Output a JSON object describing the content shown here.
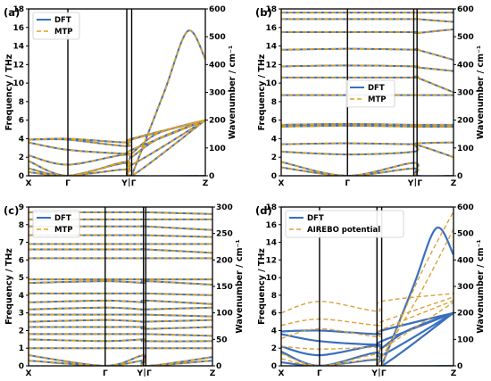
{
  "chart_data": [
    {
      "panel": "(a)",
      "type": "line",
      "ylabel": "Frequency / THz",
      "ylabel_right": "Wavenumber / cm⁻¹",
      "ylim": [
        0,
        18
      ],
      "ylim_right": [
        0,
        600
      ],
      "yticks": [
        "0",
        "2",
        "4",
        "6",
        "8",
        "10",
        "12",
        "14",
        "16",
        "18"
      ],
      "yticks_right": [
        "0",
        "100",
        "200",
        "300",
        "400",
        "500",
        "600"
      ],
      "x_ticks": [
        "X",
        "Γ",
        "Y",
        "Γ",
        "Z"
      ],
      "x_positions": [
        0,
        0.667,
        1.667,
        1.75,
        3.0
      ],
      "legend": [
        "DFT",
        "MTP"
      ],
      "legend_position": "upper left",
      "branches": [
        {
          "x": [
            0,
            0.667,
            1.667,
            1.75,
            3.0
          ],
          "y": [
            0.4,
            0.0,
            0.7,
            0.0,
            0.0
          ]
        },
        {
          "x": [
            0,
            0.667,
            1.667,
            1.75,
            3.0
          ],
          "y": [
            0.8,
            0.0,
            1.4,
            0.0,
            0.0
          ]
        },
        {
          "x": [
            0,
            0.667,
            1.667,
            1.75,
            3.0
          ],
          "y": [
            1.6,
            0.0,
            1.5,
            0.0,
            6.0
          ]
        },
        {
          "x": [
            0,
            0.667,
            1.667,
            1.75,
            3.0
          ],
          "y": [
            2.2,
            1.2,
            2.3,
            1.2,
            6.0
          ]
        },
        {
          "x": [
            0,
            0.667,
            1.667,
            1.75,
            3.0
          ],
          "y": [
            3.6,
            2.8,
            2.4,
            2.8,
            6.0
          ]
        },
        {
          "x": [
            0,
            0.667,
            1.667,
            1.75,
            3.0
          ],
          "y": [
            3.9,
            3.9,
            3.2,
            3.9,
            6.0
          ]
        },
        {
          "x": [
            0,
            0.667,
            1.667,
            1.75,
            3.0
          ],
          "y": [
            3.9,
            4.0,
            3.6,
            4.0,
            6.0
          ]
        },
        {
          "x": [
            1.75,
            2.3,
            2.7,
            3.0
          ],
          "y": [
            0.0,
            9.0,
            15.6,
            12.6
          ]
        },
        {
          "x": [
            1.75,
            2.2,
            3.0
          ],
          "y": [
            2.0,
            4.0,
            6.0
          ]
        },
        {
          "x": [
            1.75,
            2.2,
            3.0
          ],
          "y": [
            2.4,
            4.6,
            6.0
          ]
        }
      ]
    },
    {
      "panel": "(b)",
      "type": "line",
      "ylabel": "Frequency / THz",
      "ylabel_right": "Wavenumber / cm⁻¹",
      "ylim": [
        0,
        18
      ],
      "ylim_right": [
        0,
        600
      ],
      "yticks": [
        "0",
        "2",
        "4",
        "6",
        "8",
        "10",
        "12",
        "14",
        "16",
        "18"
      ],
      "yticks_right": [
        "0",
        "100",
        "200",
        "300",
        "400",
        "500",
        "600"
      ],
      "x_ticks": [
        "X",
        "Γ",
        "Y",
        "Γ",
        "Z"
      ],
      "x_positions": [
        0,
        1.0,
        2.0,
        2.05,
        2.6
      ],
      "legend": [
        "DFT",
        "MTP"
      ],
      "legend_position": "center",
      "branches": [
        {
          "x": [
            0,
            1.0,
            2.0,
            2.05,
            2.6
          ],
          "y": [
            17.6,
            17.6,
            17.6,
            17.6,
            17.6
          ]
        },
        {
          "x": [
            0,
            1.0,
            2.0,
            2.05,
            2.6
          ],
          "y": [
            16.9,
            16.9,
            16.9,
            16.9,
            16.6
          ]
        },
        {
          "x": [
            0,
            1.0,
            2.0,
            2.05,
            2.6
          ],
          "y": [
            15.5,
            15.5,
            15.5,
            15.4,
            15.8
          ]
        },
        {
          "x": [
            0,
            1.0,
            2.0,
            2.05,
            2.6
          ],
          "y": [
            13.6,
            13.7,
            13.6,
            13.6,
            12.5
          ]
        },
        {
          "x": [
            0,
            1.0,
            2.0,
            2.05,
            2.6
          ],
          "y": [
            11.8,
            11.9,
            11.8,
            11.7,
            11.3
          ]
        },
        {
          "x": [
            0,
            1.0,
            2.0,
            2.05,
            2.6
          ],
          "y": [
            10.6,
            10.6,
            10.6,
            10.6,
            9.0
          ]
        },
        {
          "x": [
            0,
            1.0,
            2.0,
            2.05,
            2.6
          ],
          "y": [
            8.7,
            8.7,
            8.7,
            8.7,
            8.7
          ]
        },
        {
          "x": [
            0,
            1.0,
            2.0,
            2.05,
            2.6
          ],
          "y": [
            5.5,
            5.6,
            5.5,
            5.5,
            5.5
          ]
        },
        {
          "x": [
            0,
            1.0,
            2.0,
            2.05,
            2.6
          ],
          "y": [
            5.3,
            5.4,
            5.3,
            5.3,
            5.3
          ]
        },
        {
          "x": [
            0,
            1.0,
            2.0,
            2.05,
            2.6
          ],
          "y": [
            3.4,
            3.5,
            3.4,
            3.5,
            3.6
          ]
        },
        {
          "x": [
            0,
            1.0,
            2.0,
            2.05,
            2.6
          ],
          "y": [
            2.6,
            2.3,
            2.6,
            3.3,
            2.0
          ]
        },
        {
          "x": [
            0,
            1.0,
            2.0,
            2.05,
            2.6
          ],
          "y": [
            1.5,
            0.0,
            1.4,
            0.0,
            0.0
          ]
        },
        {
          "x": [
            0,
            1.0,
            2.0,
            2.05,
            2.6
          ],
          "y": [
            0.9,
            0.0,
            0.8,
            0.0,
            0.0
          ]
        }
      ]
    },
    {
      "panel": "(c)",
      "type": "line",
      "ylabel": "Frequency / THz",
      "ylabel_right": "Wavenumber / cm⁻¹",
      "ylim": [
        0,
        9
      ],
      "ylim_right": [
        0,
        300
      ],
      "yticks": [
        "0",
        "1",
        "2",
        "3",
        "4",
        "5",
        "6",
        "7",
        "8",
        "9"
      ],
      "yticks_right": [
        "0",
        "50",
        "100",
        "150",
        "200",
        "250",
        "300"
      ],
      "x_ticks": [
        "X",
        "Γ",
        "Y",
        "Γ",
        "Z"
      ],
      "x_positions": [
        0,
        1.0,
        1.5,
        1.53,
        2.4
      ],
      "legend": [
        "DFT",
        "MTP"
      ],
      "legend_position": "upper left",
      "branches": [
        {
          "x": [
            0,
            1.0,
            1.5,
            1.53,
            2.4
          ],
          "y": [
            8.7,
            8.7,
            8.7,
            8.7,
            8.6
          ]
        },
        {
          "x": [
            0,
            1.0,
            1.5,
            1.53,
            2.4
          ],
          "y": [
            8.3,
            8.3,
            8.3,
            8.3,
            8.3
          ]
        },
        {
          "x": [
            0,
            1.0,
            1.5,
            1.53,
            2.4
          ],
          "y": [
            7.9,
            7.9,
            7.9,
            7.9,
            7.7
          ]
        },
        {
          "x": [
            0,
            1.0,
            1.5,
            1.53,
            2.4
          ],
          "y": [
            7.4,
            7.4,
            7.4,
            7.4,
            7.3
          ]
        },
        {
          "x": [
            0,
            1.0,
            1.5,
            1.53,
            2.4
          ],
          "y": [
            6.9,
            6.9,
            6.9,
            6.9,
            6.9
          ]
        },
        {
          "x": [
            0,
            1.0,
            1.5,
            1.53,
            2.4
          ],
          "y": [
            6.6,
            6.6,
            6.6,
            6.6,
            6.4
          ]
        },
        {
          "x": [
            0,
            1.0,
            1.5,
            1.53,
            2.4
          ],
          "y": [
            6.1,
            6.1,
            6.1,
            6.1,
            6.1
          ]
        },
        {
          "x": [
            0,
            1.0,
            1.5,
            1.53,
            2.4
          ],
          "y": [
            4.9,
            4.9,
            4.9,
            4.9,
            4.9
          ]
        },
        {
          "x": [
            0,
            1.0,
            1.5,
            1.53,
            2.4
          ],
          "y": [
            4.7,
            4.8,
            4.7,
            4.8,
            4.6
          ]
        },
        {
          "x": [
            0,
            1.0,
            1.5,
            1.53,
            2.4
          ],
          "y": [
            4.1,
            4.1,
            4.1,
            4.1,
            4.0
          ]
        },
        {
          "x": [
            0,
            1.0,
            1.5,
            1.53,
            2.4
          ],
          "y": [
            3.6,
            3.7,
            3.6,
            3.7,
            3.5
          ]
        },
        {
          "x": [
            0,
            1.0,
            1.5,
            1.53,
            2.4
          ],
          "y": [
            3.2,
            3.3,
            3.2,
            3.2,
            3.3
          ]
        },
        {
          "x": [
            0,
            1.0,
            1.5,
            1.53,
            2.4
          ],
          "y": [
            2.9,
            2.9,
            2.9,
            2.9,
            2.8
          ]
        },
        {
          "x": [
            0,
            1.0,
            1.5,
            1.53,
            2.4
          ],
          "y": [
            2.5,
            2.6,
            2.5,
            2.5,
            2.6
          ]
        },
        {
          "x": [
            0,
            1.0,
            1.5,
            1.53,
            2.4
          ],
          "y": [
            2.2,
            2.2,
            2.2,
            2.1,
            2.2
          ]
        },
        {
          "x": [
            0,
            1.0,
            1.5,
            1.53,
            2.4
          ],
          "y": [
            1.8,
            1.8,
            1.8,
            1.8,
            1.7
          ]
        },
        {
          "x": [
            0,
            1.0,
            1.5,
            1.53,
            2.4
          ],
          "y": [
            1.5,
            1.4,
            1.5,
            1.4,
            1.4
          ]
        },
        {
          "x": [
            0,
            1.0,
            1.5,
            1.53,
            2.4
          ],
          "y": [
            1.0,
            1.0,
            1.0,
            1.0,
            1.0
          ]
        },
        {
          "x": [
            0,
            1.0,
            1.5,
            1.53,
            2.4
          ],
          "y": [
            0.6,
            0.0,
            0.6,
            0.0,
            0.5
          ]
        },
        {
          "x": [
            0,
            1.0,
            1.5,
            1.53,
            2.4
          ],
          "y": [
            0.3,
            0.0,
            0.3,
            0.0,
            0.3
          ]
        }
      ]
    },
    {
      "panel": "(d)",
      "type": "line",
      "ylabel": "Frequency / THz",
      "ylabel_right": "Wavenumber / cm⁻¹",
      "ylim": [
        0,
        18
      ],
      "ylim_right": [
        0,
        600
      ],
      "yticks": [
        "0",
        "2",
        "4",
        "6",
        "8",
        "10",
        "12",
        "14",
        "16",
        "18"
      ],
      "yticks_right": [
        "0",
        "100",
        "200",
        "300",
        "400",
        "500",
        "600"
      ],
      "x_ticks": [
        "X",
        "Γ",
        "Y",
        "Γ",
        "Z"
      ],
      "x_positions": [
        0,
        0.667,
        1.667,
        1.75,
        3.0
      ],
      "legend": [
        "DFT",
        "AIREBO potential"
      ],
      "legend_position": "upper left",
      "series": [
        {
          "name": "DFT",
          "branches": [
            {
              "x": [
                0,
                0.667,
                1.667,
                1.75,
                3.0
              ],
              "y": [
                0.4,
                0.0,
                0.7,
                0.0,
                0.0
              ]
            },
            {
              "x": [
                0,
                0.667,
                1.667,
                1.75,
                3.0
              ],
              "y": [
                1.6,
                0.0,
                1.5,
                0.0,
                6.0
              ]
            },
            {
              "x": [
                0,
                0.667,
                1.667,
                1.75,
                3.0
              ],
              "y": [
                2.2,
                1.2,
                2.3,
                1.2,
                6.0
              ]
            },
            {
              "x": [
                0,
                0.667,
                1.667,
                1.75,
                3.0
              ],
              "y": [
                3.6,
                2.8,
                2.4,
                2.8,
                6.0
              ]
            },
            {
              "x": [
                0,
                0.667,
                1.667,
                1.75,
                3.0
              ],
              "y": [
                3.9,
                4.0,
                3.6,
                4.0,
                6.0
              ]
            },
            {
              "x": [
                1.75,
                2.3,
                2.7,
                3.0
              ],
              "y": [
                0.0,
                9.0,
                15.6,
                12.6
              ]
            },
            {
              "x": [
                1.75,
                2.2,
                3.0
              ],
              "y": [
                2.0,
                4.0,
                6.0
              ]
            }
          ]
        },
        {
          "name": "AIREBO potential",
          "branches": [
            {
              "x": [
                0,
                0.667,
                1.667,
                1.75,
                3.0
              ],
              "y": [
                6.0,
                7.3,
                6.2,
                7.3,
                8.2
              ]
            },
            {
              "x": [
                0,
                0.667,
                1.667,
                1.75,
                3.0
              ],
              "y": [
                4.6,
                5.3,
                4.6,
                5.0,
                7.8
              ]
            },
            {
              "x": [
                0,
                0.667,
                1.667,
                1.75,
                3.0
              ],
              "y": [
                3.1,
                4.2,
                3.3,
                4.1,
                7.4
              ]
            },
            {
              "x": [
                0,
                0.667,
                1.667,
                1.75,
                3.0
              ],
              "y": [
                2.2,
                1.9,
                2.1,
                1.9,
                7.2
              ]
            },
            {
              "x": [
                0,
                0.667,
                1.667,
                1.75,
                3.0
              ],
              "y": [
                1.4,
                0.0,
                1.3,
                0.0,
                0.0
              ]
            },
            {
              "x": [
                0,
                0.667,
                1.667,
                1.75,
                3.0
              ],
              "y": [
                0.8,
                0.0,
                0.8,
                0.0,
                0.0
              ]
            },
            {
              "x": [
                1.75,
                2.4,
                3.0
              ],
              "y": [
                0.0,
                10.0,
                17.5
              ]
            },
            {
              "x": [
                1.75,
                2.4,
                3.0
              ],
              "y": [
                1.0,
                8.0,
                15.5
              ]
            }
          ]
        }
      ]
    }
  ],
  "colors": {
    "dft": "#3a6fbf",
    "mtp": "#e3a019",
    "dft_d": "#3a6fbf",
    "airebo": "#d9a23a",
    "axis": "#000000"
  }
}
